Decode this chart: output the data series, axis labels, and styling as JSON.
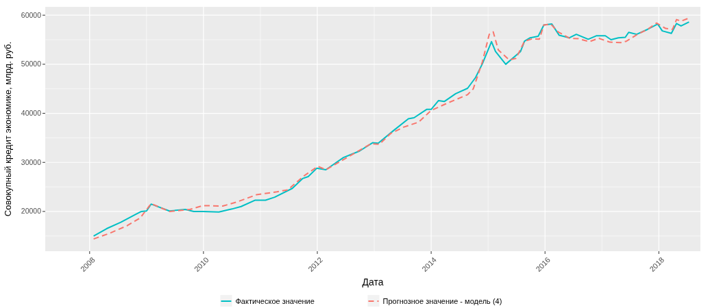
{
  "chart_data": {
    "type": "line",
    "xlabel": "Дата",
    "ylabel": "Совокупный кредит экономике, млрд. руб.",
    "xlim": [
      2007.22,
      2018.73
    ],
    "xticks": [
      2008,
      2010,
      2012,
      2014,
      2016,
      2018
    ],
    "ylim": [
      11900,
      61700
    ],
    "yticks": [
      20000,
      30000,
      40000,
      50000,
      60000
    ],
    "grid": true,
    "legend": "bottom",
    "series": [
      {
        "name": "Фактическое значение",
        "color": "#00bfc4",
        "line_style": "solid",
        "x": [
          2008.07,
          2008.3,
          2008.55,
          2008.81,
          2008.91,
          2009.0,
          2009.08,
          2009.4,
          2009.68,
          2009.83,
          2009.99,
          2010.27,
          2010.5,
          2010.66,
          2010.91,
          2011.09,
          2011.25,
          2011.56,
          2011.74,
          2011.84,
          2011.99,
          2012.15,
          2012.46,
          2012.74,
          2012.97,
          2013.07,
          2013.33,
          2013.6,
          2013.7,
          2013.92,
          2014.0,
          2014.13,
          2014.23,
          2014.43,
          2014.64,
          2014.78,
          2014.9,
          2015.06,
          2015.13,
          2015.31,
          2015.57,
          2015.64,
          2015.74,
          2015.88,
          2015.98,
          2016.12,
          2016.25,
          2016.43,
          2016.55,
          2016.76,
          2016.9,
          2017.06,
          2017.16,
          2017.29,
          2017.41,
          2017.47,
          2017.61,
          2017.8,
          2017.98,
          2018.06,
          2018.22,
          2018.31,
          2018.39,
          2018.53
        ],
        "values": [
          15000,
          16500,
          17800,
          19400,
          20000,
          20100,
          21500,
          20100,
          20400,
          20000,
          20000,
          19900,
          20500,
          21000,
          22300,
          22300,
          22900,
          24700,
          26700,
          27100,
          28800,
          28500,
          31000,
          32300,
          34000,
          33900,
          36400,
          38900,
          39100,
          40800,
          40800,
          42600,
          42400,
          44000,
          45100,
          47300,
          50100,
          54600,
          52600,
          50000,
          52600,
          54700,
          55400,
          55700,
          58000,
          58200,
          55900,
          55400,
          56100,
          55100,
          55800,
          55800,
          55000,
          55400,
          55500,
          56500,
          56100,
          57100,
          58200,
          56800,
          56300,
          58300,
          57800,
          58600
        ]
      },
      {
        "name": "Прогнозное значение - модель (4)",
        "color": "#f8766d",
        "line_style": "dashed",
        "x": [
          2008.07,
          2008.34,
          2008.66,
          2008.89,
          2009.08,
          2009.4,
          2009.76,
          2009.99,
          2010.34,
          2010.58,
          2010.93,
          2011.29,
          2011.48,
          2011.76,
          2012.01,
          2012.15,
          2012.94,
          2013.09,
          2013.29,
          2013.52,
          2013.78,
          2014.0,
          2014.31,
          2014.64,
          2014.74,
          2014.9,
          2015.02,
          2015.09,
          2015.18,
          2015.37,
          2015.49,
          2015.64,
          2015.78,
          2015.9,
          2015.98,
          2016.1,
          2016.23,
          2016.43,
          2016.59,
          2016.78,
          2016.94,
          2017.14,
          2017.33,
          2017.43,
          2017.61,
          2017.8,
          2017.96,
          2018.12,
          2018.24,
          2018.31,
          2018.39,
          2018.53
        ],
        "values": [
          14400,
          15500,
          17100,
          18700,
          21600,
          20000,
          20400,
          21200,
          21100,
          21900,
          23400,
          24000,
          24400,
          27200,
          29200,
          28500,
          33800,
          33700,
          35900,
          37200,
          38200,
          40600,
          42200,
          43800,
          45000,
          50500,
          56100,
          56600,
          52900,
          50900,
          51200,
          54700,
          55200,
          55100,
          58000,
          58200,
          56600,
          55300,
          55200,
          54600,
          55300,
          54500,
          54400,
          54700,
          56000,
          57100,
          58400,
          57300,
          57100,
          59100,
          58800,
          59400
        ]
      }
    ]
  }
}
